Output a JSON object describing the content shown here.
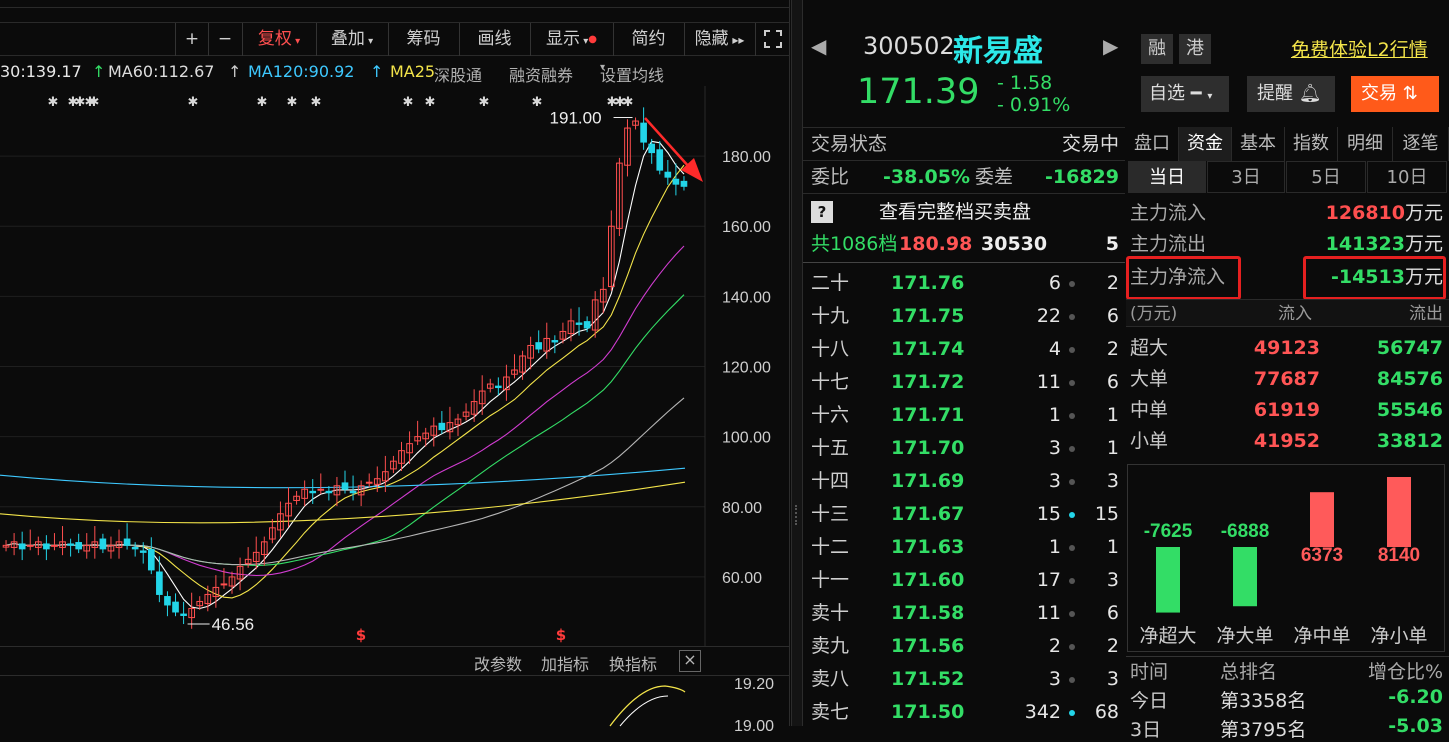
{
  "toolbar": {
    "plus": "+",
    "minus": "−",
    "fuquan": "复权",
    "diejia": "叠加",
    "chouma": "筹码",
    "huaxian": "画线",
    "xianshi": "显示",
    "jianyue": "简约",
    "yincang": "隐藏"
  },
  "ma_row": {
    "ma30": "30:139.17",
    "ma60": "MA60:112.67",
    "ma120": "MA120:90.92",
    "ma250": "MA25",
    "shengutong": "深股通",
    "rongzi": "融资融券",
    "setting": "设置均线"
  },
  "chart_data": {
    "type": "candlestick",
    "y_ticks": [
      "180.00",
      "160.00",
      "140.00",
      "120.00",
      "100.00",
      "80.00",
      "60.00"
    ],
    "ylim": [
      46,
      196
    ],
    "high_label": "191.00",
    "low_label": "46.56",
    "sub_ticks": [
      "19.20",
      "19.00"
    ],
    "closes": [
      69,
      70,
      68,
      69,
      70,
      68,
      69,
      70,
      69,
      68,
      69,
      70,
      68,
      69,
      70,
      69,
      68,
      67,
      62,
      55,
      52,
      50,
      49,
      51,
      53,
      55,
      57,
      58,
      60,
      63,
      65,
      67,
      70,
      74,
      78,
      81,
      83,
      85,
      84,
      85,
      84,
      86,
      85,
      84,
      86,
      87,
      88,
      90,
      93,
      96,
      98,
      100,
      101,
      103,
      102,
      104,
      105,
      107,
      110,
      113,
      115,
      114,
      117,
      119,
      123,
      126,
      125,
      128,
      127,
      130,
      133,
      132,
      131,
      139,
      142,
      160,
      178,
      188,
      190,
      184,
      181,
      176,
      174,
      172,
      171.39
    ]
  },
  "indicator_bar": {
    "param": "改参数",
    "add": "加指标",
    "switch": "换指标",
    "close": "×"
  },
  "stock": {
    "code": "300502",
    "name": "新易盛",
    "tag_rong": "融",
    "tag_gang": "港",
    "l2": "免费体验L2行情",
    "price": "171.39",
    "change": "- 1.58",
    "change_pct": "- 0.91%",
    "zixuan": "自选",
    "tixing": "提醒",
    "jiaoyi": "交易"
  },
  "trade": {
    "state_label": "交易状态",
    "state_value": "交易中",
    "weibi_label": "委比",
    "weibi_value": "-38.05%",
    "weicha_label": "委差",
    "weicha_value": "-16829",
    "full_book": "查看完整档买卖盘",
    "q_mark": "?",
    "total_label": "共1086档",
    "total_price": "180.98",
    "total_vol": "30530",
    "total_cnt": "5"
  },
  "order_book": [
    {
      "lvl": "二十",
      "price": "171.76",
      "vol": "6",
      "cnt": "2",
      "dot": "gray"
    },
    {
      "lvl": "十九",
      "price": "171.75",
      "vol": "22",
      "cnt": "6",
      "dot": "gray"
    },
    {
      "lvl": "十八",
      "price": "171.74",
      "vol": "4",
      "cnt": "2",
      "dot": "gray"
    },
    {
      "lvl": "十七",
      "price": "171.72",
      "vol": "11",
      "cnt": "6",
      "dot": "gray"
    },
    {
      "lvl": "十六",
      "price": "171.71",
      "vol": "1",
      "cnt": "1",
      "dot": "gray"
    },
    {
      "lvl": "十五",
      "price": "171.70",
      "vol": "3",
      "cnt": "1",
      "dot": "gray"
    },
    {
      "lvl": "十四",
      "price": "171.69",
      "vol": "3",
      "cnt": "3",
      "dot": "gray"
    },
    {
      "lvl": "十三",
      "price": "171.67",
      "vol": "15",
      "cnt": "15",
      "dot": "cyan"
    },
    {
      "lvl": "十二",
      "price": "171.63",
      "vol": "1",
      "cnt": "1",
      "dot": "gray"
    },
    {
      "lvl": "十一",
      "price": "171.60",
      "vol": "17",
      "cnt": "3",
      "dot": "gray"
    },
    {
      "lvl": "卖十",
      "price": "171.58",
      "vol": "11",
      "cnt": "6",
      "dot": "gray"
    },
    {
      "lvl": "卖九",
      "price": "171.56",
      "vol": "2",
      "cnt": "2",
      "dot": "gray"
    },
    {
      "lvl": "卖八",
      "price": "171.52",
      "vol": "3",
      "cnt": "3",
      "dot": "gray"
    },
    {
      "lvl": "卖七",
      "price": "171.50",
      "vol": "342",
      "cnt": "68",
      "dot": "cyan"
    }
  ],
  "tabs": [
    "盘口",
    "资金",
    "基本",
    "指数",
    "明细",
    "逐笔"
  ],
  "subtabs": [
    "当日",
    "3日",
    "5日",
    "10日"
  ],
  "flow": {
    "in_label": "主力流入",
    "in_value": "126810",
    "in_unit": "万元",
    "out_label": "主力流出",
    "out_value": "141323",
    "out_unit": "万元",
    "net_label": "主力净流入",
    "net_value": "-14513",
    "net_unit": "万元"
  },
  "size_header": {
    "unit": "(万元)",
    "in": "流入",
    "out": "流出"
  },
  "sizes": [
    {
      "name": "超大",
      "in": "49123",
      "out": "56747"
    },
    {
      "name": "大单",
      "in": "77687",
      "out": "84576"
    },
    {
      "name": "中单",
      "in": "61919",
      "out": "55546"
    },
    {
      "name": "小单",
      "in": "41952",
      "out": "33812"
    }
  ],
  "net_bars": [
    {
      "label": "净超大",
      "value": -7625,
      "text": "-7625"
    },
    {
      "label": "净大单",
      "value": -6888,
      "text": "-6888"
    },
    {
      "label": "净中单",
      "value": 6373,
      "text": "6373"
    },
    {
      "label": "净小单",
      "value": 8140,
      "text": "8140"
    }
  ],
  "rank": {
    "time_label": "时间",
    "rank_label": "总排名",
    "pct_label": "增仓比%",
    "today": "今日",
    "today_rank": "第3358名",
    "today_pct": "-6.20",
    "d3": "3日",
    "d3_rank": "第3795名",
    "d3_pct": "-5.03"
  }
}
